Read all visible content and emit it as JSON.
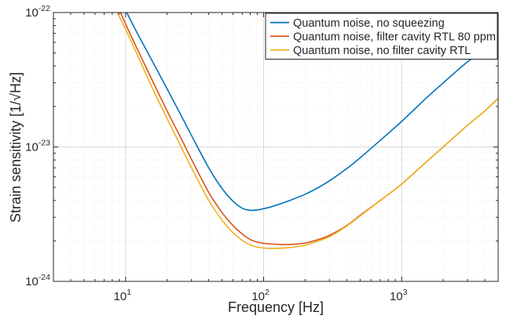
{
  "chart_data": {
    "type": "line",
    "xlabel": "Frequency [Hz]",
    "ylabel": "Strain sensitivity [1/√Hz]",
    "xscale": "log",
    "yscale": "log",
    "xlim": [
      3,
      5000
    ],
    "ylim": [
      1e-24,
      1e-22
    ],
    "grid": true,
    "legend_position": "top-right",
    "x_tick_labels": [
      {
        "value": 10,
        "base": "10",
        "exp": "1"
      },
      {
        "value": 100,
        "base": "10",
        "exp": "2"
      },
      {
        "value": 1000,
        "base": "10",
        "exp": "3"
      }
    ],
    "y_tick_labels": [
      {
        "value": 1e-22,
        "base": "10",
        "exp": "-22"
      },
      {
        "value": 1e-23,
        "base": "10",
        "exp": "-23"
      },
      {
        "value": 1e-24,
        "base": "10",
        "exp": "-24"
      }
    ],
    "series": [
      {
        "name": "Quantum noise, no squeezing",
        "color": "#0072bd",
        "x": [
          10.2,
          12,
          15,
          20,
          25,
          30,
          40,
          50,
          60,
          70,
          80,
          90,
          100,
          120,
          150,
          200,
          250,
          300,
          400,
          500,
          700,
          1000,
          1500,
          2000,
          3000,
          4000,
          5000
        ],
        "y": [
          1e-22,
          7.2e-23,
          4.7e-23,
          2.7e-23,
          1.75e-23,
          1.22e-23,
          7e-24,
          4.9e-24,
          3.95e-24,
          3.5e-24,
          3.38e-24,
          3.4e-24,
          3.47e-24,
          3.65e-24,
          3.95e-24,
          4.45e-24,
          5e-24,
          5.6e-24,
          6.9e-24,
          8.3e-24,
          1.12e-23,
          1.55e-23,
          2.3e-23,
          3e-23,
          4.3e-23,
          5.3e-23,
          6e-23
        ]
      },
      {
        "name": "Quantum noise, filter cavity RTL 80 ppm",
        "color": "#d95319",
        "x": [
          9.2,
          10,
          12,
          15,
          20,
          25,
          30,
          40,
          50,
          60,
          70,
          80,
          90,
          100,
          120,
          150,
          200,
          250,
          300,
          400,
          500,
          700,
          1000,
          1500,
          2000,
          3000,
          4000,
          5000
        ],
        "y": [
          1e-22,
          8.2e-23,
          5.5e-23,
          3.4e-23,
          1.85e-23,
          1.18e-23,
          8.1e-24,
          4.6e-24,
          3.25e-24,
          2.6e-24,
          2.25e-24,
          2.05e-24,
          1.96e-24,
          1.92e-24,
          1.89e-24,
          1.88e-24,
          1.93e-24,
          2.05e-24,
          2.2e-24,
          2.6e-24,
          3.1e-24,
          4e-24,
          5.3e-24,
          7.7e-24,
          1e-23,
          1.45e-23,
          1.85e-23,
          2.3e-23
        ]
      },
      {
        "name": "Quantum noise, no filter cavity RTL",
        "color": "#edb120",
        "x": [
          8.7,
          10,
          12,
          15,
          20,
          25,
          30,
          40,
          50,
          60,
          70,
          80,
          90,
          100,
          120,
          150,
          200,
          250,
          300,
          400,
          500,
          700,
          1000,
          1500,
          2000,
          3000,
          4000,
          5000
        ],
        "y": [
          1e-22,
          7.5e-23,
          5e-23,
          3e-23,
          1.62e-23,
          1.02e-23,
          7e-24,
          4e-24,
          2.85e-24,
          2.3e-24,
          2.02e-24,
          1.87e-24,
          1.8e-24,
          1.77e-24,
          1.76e-24,
          1.78e-24,
          1.86e-24,
          2e-24,
          2.15e-24,
          2.58e-24,
          3.07e-24,
          4e-24,
          5.3e-24,
          7.7e-24,
          1e-23,
          1.45e-23,
          1.85e-23,
          2.3e-23
        ]
      }
    ]
  }
}
